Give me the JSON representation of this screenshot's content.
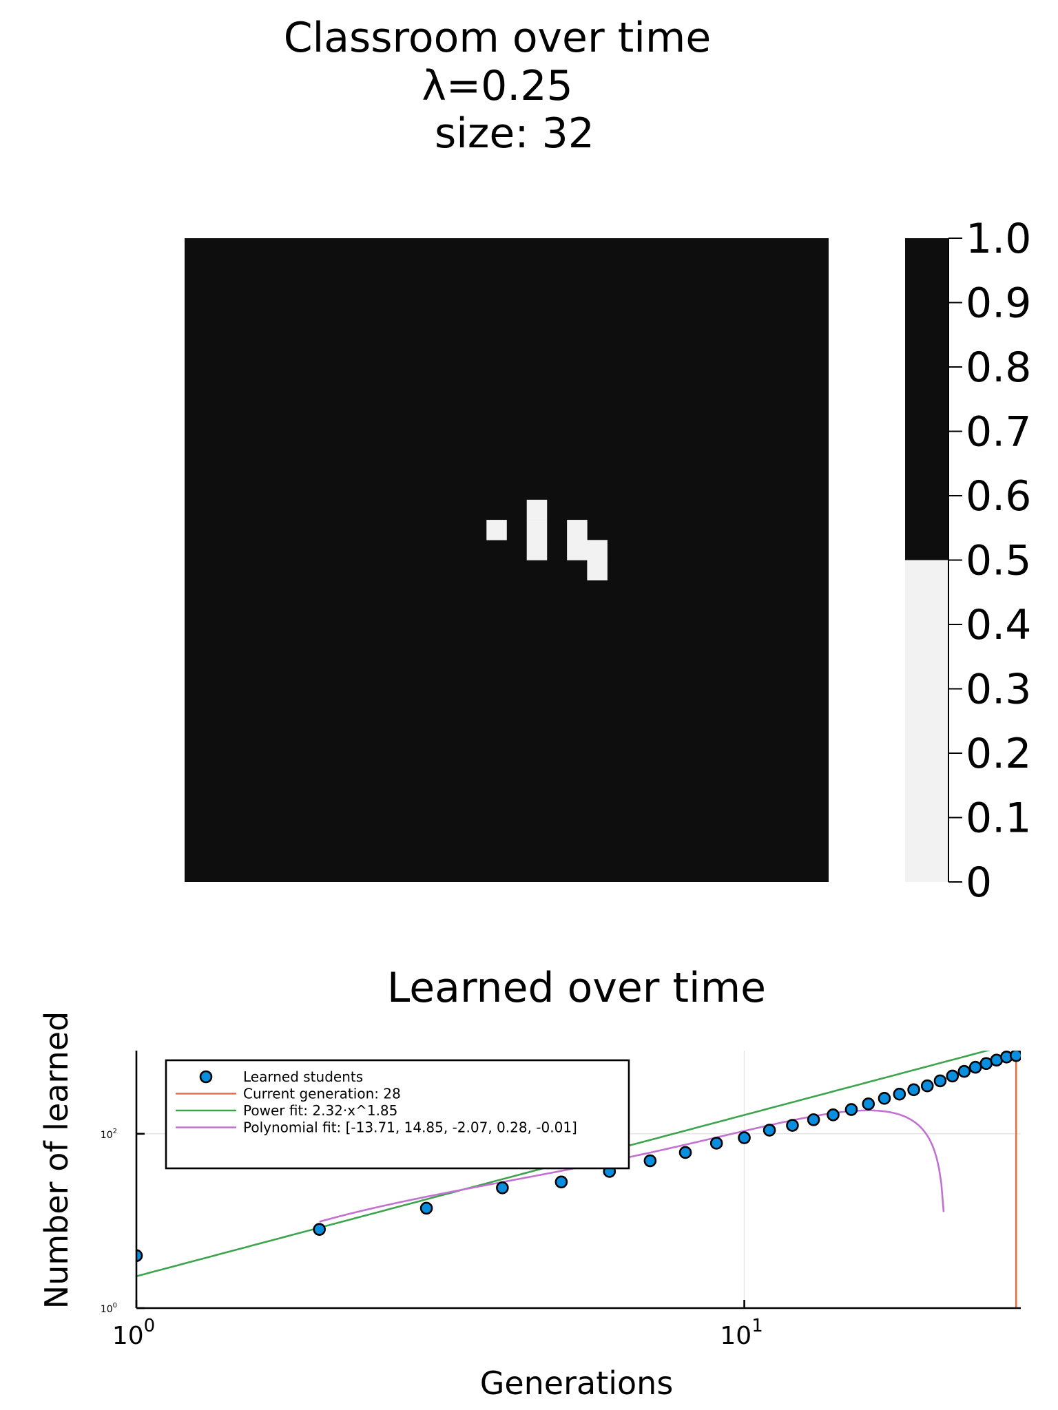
{
  "chart_data": [
    {
      "type": "heatmap",
      "title_lines": [
        "Classroom over time",
        "λ=0.25",
        "size: 32"
      ],
      "grid_size": 32,
      "colorbar": {
        "ticks": [
          "0",
          "0.1",
          "0.2",
          "0.3",
          "0.4",
          "0.5",
          "0.6",
          "0.7",
          "0.8",
          "0.9",
          "1.0"
        ],
        "range": [
          0,
          1
        ],
        "threshold": 0.5,
        "low_color": "#f2f2f2",
        "high_color": "#0e0e0e"
      },
      "background_value": 1,
      "cells_value_0": [
        [
          15,
          14
        ],
        [
          17,
          13
        ],
        [
          17,
          14
        ],
        [
          17,
          15
        ],
        [
          19,
          14
        ],
        [
          19,
          15
        ],
        [
          20,
          15
        ],
        [
          20,
          16
        ]
      ]
    },
    {
      "type": "scatter",
      "title": "Learned over time",
      "xlabel": "Generations",
      "ylabel": "Number of learned",
      "xscale": "log10",
      "yscale": "log10",
      "x_ticks": [
        {
          "base": "10",
          "exp": "0"
        },
        {
          "base": "10",
          "exp": "1"
        }
      ],
      "y_ticks": [
        {
          "base": "10",
          "exp": "0"
        },
        {
          "base": "10",
          "exp": "2"
        }
      ],
      "xlim": [
        1,
        28.5
      ],
      "ylim": [
        1,
        900
      ],
      "grid": true,
      "legend_position": "top-left",
      "series": [
        {
          "name": "Learned students",
          "kind": "scatter",
          "color": "#0a8fe0",
          "x": [
            1,
            2,
            3,
            4,
            5,
            6,
            7,
            8,
            9,
            10,
            11,
            12,
            13,
            14,
            15,
            16,
            17,
            18,
            19,
            20,
            21,
            22,
            23,
            24,
            25,
            26,
            27,
            28
          ],
          "y": [
            4,
            8,
            14,
            24,
            28,
            37,
            49,
            61,
            78,
            90,
            110,
            125,
            145,
            165,
            190,
            220,
            255,
            285,
            320,
            355,
            405,
            460,
            520,
            580,
            640,
            700,
            760,
            790
          ]
        },
        {
          "name": "Current generation: 28",
          "kind": "vline",
          "color": "#e26f46",
          "x": 28
        },
        {
          "name": "Power fit: 2.32·x^1.85",
          "kind": "power",
          "color": "#3da44d",
          "coef": 2.32,
          "exponent": 1.85
        },
        {
          "name": "Polynomial fit: [-13.71, 14.85, -2.07, 0.28, -0.01]",
          "kind": "polynomial",
          "color": "#c271d2",
          "coefficients": [
            -13.71,
            14.85,
            -2.07,
            0.28,
            -0.01
          ]
        }
      ]
    }
  ]
}
